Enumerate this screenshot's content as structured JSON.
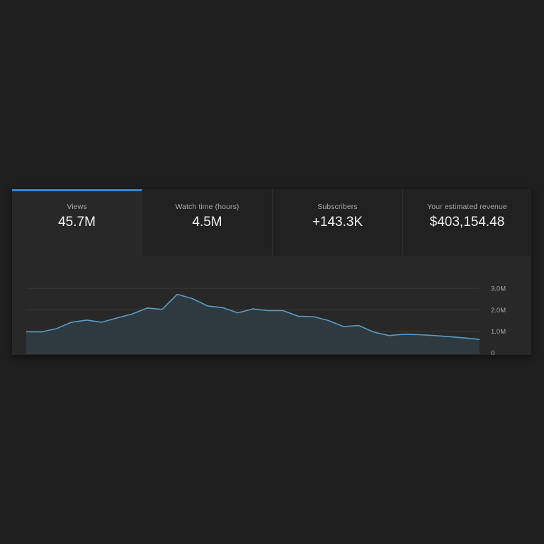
{
  "metrics": [
    {
      "label": "Views",
      "value": "45.7M",
      "selected": true
    },
    {
      "label": "Watch time (hours)",
      "value": "4.5M",
      "selected": false
    },
    {
      "label": "Subscribers",
      "value": "+143.3K",
      "selected": false
    },
    {
      "label": "Your estimated revenue",
      "value": "$403,154.48",
      "selected": false
    }
  ],
  "colors": {
    "accent": "#3ea6ff",
    "line": "#5b9ac3",
    "area_fill": "#2e3a40"
  },
  "chart_data": {
    "type": "area",
    "title": "",
    "xlabel": "",
    "ylabel": "",
    "ylim": [
      0,
      3000000
    ],
    "y_ticks": [
      {
        "value": 3000000,
        "label": "3.0M"
      },
      {
        "value": 2000000,
        "label": "2.0M"
      },
      {
        "value": 1000000,
        "label": "1.0M"
      },
      {
        "value": 0,
        "label": "0"
      }
    ],
    "grid": true,
    "x": [
      1,
      2,
      3,
      4,
      5,
      6,
      7,
      8,
      9,
      10,
      11,
      12,
      13,
      14,
      15,
      16,
      17,
      18,
      19,
      20,
      21,
      22,
      23,
      24,
      25,
      26,
      27,
      28,
      29,
      30,
      31
    ],
    "series": [
      {
        "values": [
          980000,
          970000,
          1120000,
          1420000,
          1520000,
          1420000,
          1620000,
          1800000,
          2080000,
          2020000,
          2720000,
          2520000,
          2180000,
          2100000,
          1860000,
          2040000,
          1960000,
          1960000,
          1700000,
          1680000,
          1500000,
          1220000,
          1270000,
          960000,
          800000,
          860000,
          840000,
          800000,
          750000,
          690000,
          620000
        ]
      }
    ]
  }
}
